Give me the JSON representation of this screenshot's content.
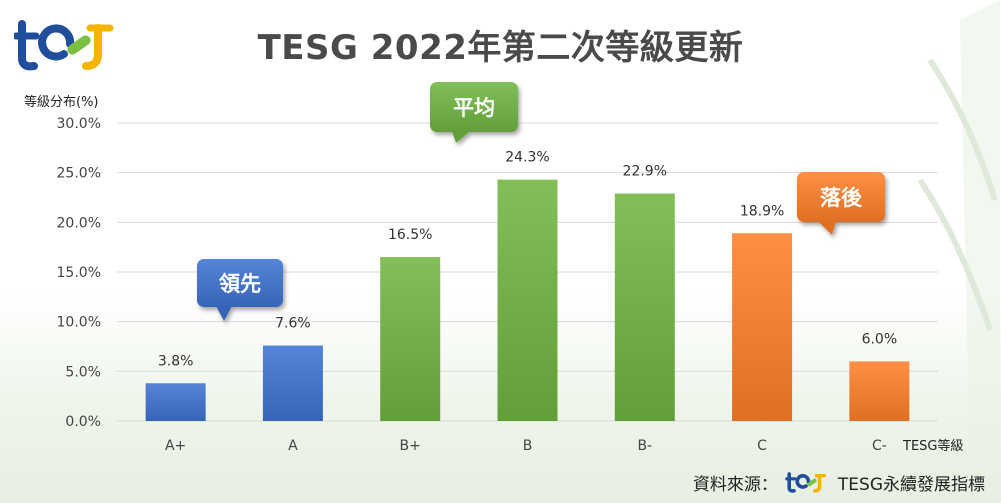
{
  "header": {
    "title": "TESG 2022年第二次等級更新",
    "logo_text": "tesg"
  },
  "axes": {
    "y_title": "等級分布(%)",
    "x_title": "TESG等級"
  },
  "callouts": {
    "leader": "領先",
    "average": "平均",
    "laggard": "落後"
  },
  "footer": {
    "source_label": "資料來源：",
    "source_name": "TESG永續發展指標"
  },
  "colors": {
    "leader": "#4472c4",
    "average": "#70ad47",
    "laggard": "#ed7d31",
    "grid": "#d9d9d9",
    "logo_blue": "#1f4e9c",
    "logo_green": "#7ac143",
    "logo_yellow": "#f5b400"
  },
  "chart_data": {
    "type": "bar",
    "categories": [
      "A+",
      "A",
      "B+",
      "B",
      "B-",
      "C",
      "C-"
    ],
    "values": [
      3.8,
      7.6,
      16.5,
      24.3,
      22.9,
      18.9,
      6.0
    ],
    "value_labels": [
      "3.8%",
      "7.6%",
      "16.5%",
      "24.3%",
      "22.9%",
      "18.9%",
      "6.0%"
    ],
    "groups": [
      "leader",
      "leader",
      "average",
      "average",
      "average",
      "laggard",
      "laggard"
    ],
    "title": "TESG 2022年第二次等級更新",
    "xlabel": "TESG等級",
    "ylabel": "等級分布(%)",
    "ylim": [
      0,
      30
    ],
    "yticks": [
      "0.0%",
      "5.0%",
      "10.0%",
      "15.0%",
      "20.0%",
      "25.0%",
      "30.0%"
    ],
    "grid": true,
    "legend": "none"
  }
}
